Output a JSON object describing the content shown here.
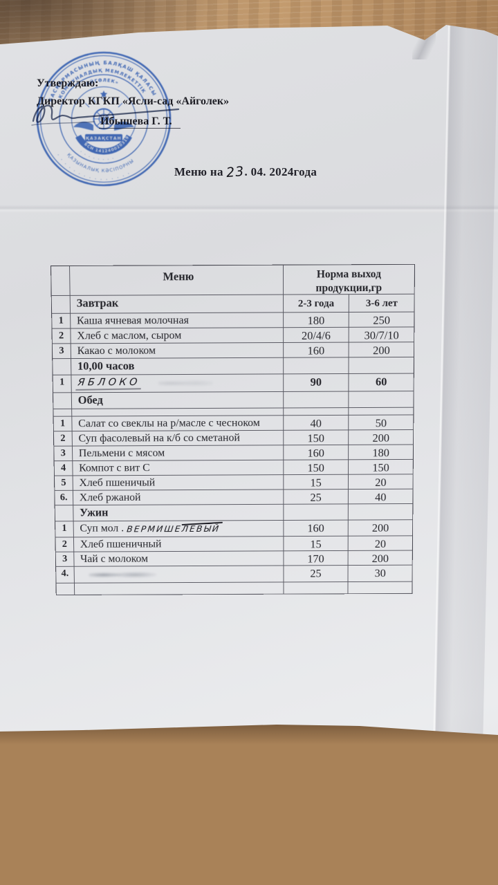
{
  "colors": {
    "stamp_blue": "#3f6dc2",
    "paper": "#e0e1e4",
    "ink": "#26262c",
    "wood_top": "#b5916a",
    "desk_bottom": "#a47a52"
  },
  "approval": {
    "heading": "Утверждаю:",
    "director_line": "Директор КГКП «Ясли-сад «Айголек»",
    "signer_name": "Ибышева Г. Т."
  },
  "stamp": {
    "outer_ring_top": "БАСҚАРМАСЫНЫҢ БАЛҚАШ ҚАЛАСЫ",
    "outer_ring_bottom": "· · · · · · · · · · · · · · ·",
    "middle_ring_top": "КОММУНАЛДЫҚ МЕМЛЕКЕТТІК",
    "middle_ring_bottom": "ҚАЗЫНАЛЫҚ КӘСІПОРНЫ",
    "inner_ring_top": "«АЙГӨЛЕК»",
    "inner_ring_bottom": "· · · · · · · ·",
    "center_banner": "ҚАЗАҚСТАН",
    "registration_number": "БСН 141240020319"
  },
  "title": {
    "prefix": "Меню на ",
    "handwritten_day": "23",
    "suffix": ". 04.  2024года"
  },
  "table": {
    "header": {
      "menu_col": "Меню",
      "norm_col": "Норма выход продукции,гр"
    },
    "rows": [
      {
        "type": "ages",
        "label": "Завтрак",
        "v1": "2-3 года",
        "v2": "3-6 лет"
      },
      {
        "type": "item",
        "num": "1",
        "name": "Каша ячневая молочная",
        "v1": "180",
        "v2": "250"
      },
      {
        "type": "item",
        "num": "2",
        "name": "Хлеб с маслом, сыром",
        "v1": "20/4/6",
        "v2": "30/7/10"
      },
      {
        "type": "item",
        "num": "3",
        "name": "Какао с молоком",
        "v1": "160",
        "v2": "200"
      },
      {
        "type": "section",
        "label": "10,00 часов"
      },
      {
        "type": "item_hand",
        "num": "1",
        "name": "ЯБЛОКО",
        "v1": "90",
        "v2": "60",
        "bold": true,
        "smudge_after": true
      },
      {
        "type": "section",
        "label": "Обед"
      },
      {
        "type": "spacer"
      },
      {
        "type": "item",
        "num": "1",
        "name": "Салат со свеклы на р/масле с чесноком",
        "v1": "40",
        "v2": "50"
      },
      {
        "type": "item",
        "num": "2",
        "name": "Суп фасолевый на к/б со сметаной",
        "v1": "150",
        "v2": "200"
      },
      {
        "type": "item",
        "num": "3",
        "name": "Пельмени с мясом",
        "v1": "160",
        "v2": "180"
      },
      {
        "type": "item",
        "num": "4",
        "name": "Компот с вит С",
        "v1": "150",
        "v2": "150"
      },
      {
        "type": "item",
        "num": "5",
        "name": "Хлеб пшеничый",
        "v1": "15",
        "v2": "20"
      },
      {
        "type": "item",
        "num": "6.",
        "name": "Хлеб ржаной",
        "v1": "25",
        "v2": "40"
      },
      {
        "type": "section",
        "label": "Ужин"
      },
      {
        "type": "item_mixed",
        "num": "1",
        "typed": "Суп мол .",
        "hand": "ВЕРМИШЕЛЕВЫЙ",
        "v1": "160",
        "v2": "200"
      },
      {
        "type": "item",
        "num": "2",
        "name": "Хлеб пшеничный",
        "v1": "15",
        "v2": "20"
      },
      {
        "type": "item",
        "num": "3",
        "name": "Чай с молоком",
        "v1": "170",
        "v2": "200"
      },
      {
        "type": "item_smudged",
        "num": "4.",
        "v1": "25",
        "v2": "30"
      },
      {
        "type": "spacer_tall"
      }
    ]
  }
}
